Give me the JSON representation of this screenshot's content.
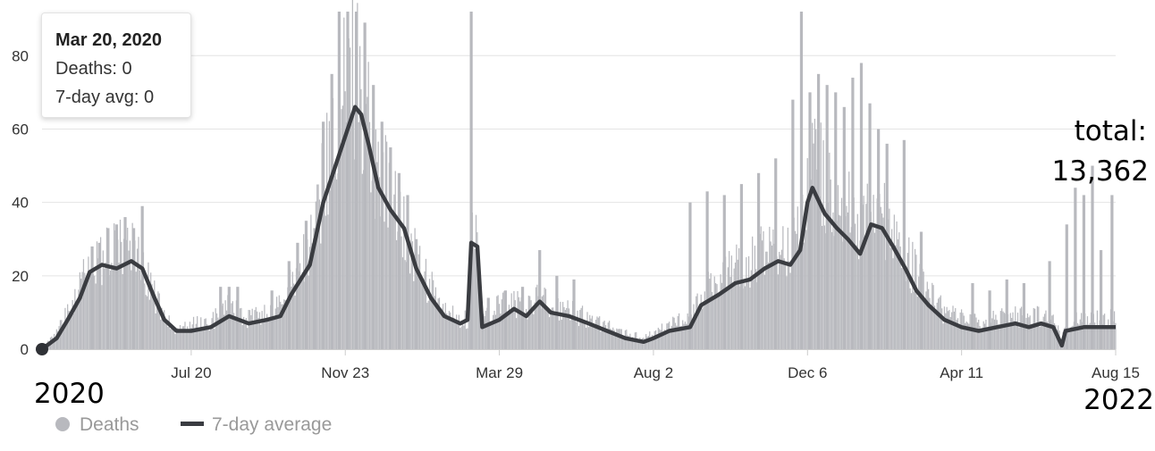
{
  "tooltip": {
    "title": "Mar 20, 2020",
    "deaths_label": "Deaths: 0",
    "avg_label": "7-day avg: 0"
  },
  "annotations": {
    "total_label": "total:",
    "total_value": "13,362",
    "start_year": "2020",
    "end_year": "2022"
  },
  "legend": {
    "deaths": "Deaths",
    "avg": "7-day average"
  },
  "colors": {
    "bars": "#b8b9be",
    "line": "#3a3c41",
    "grid": "#e4e4e4",
    "marker": "#2f3136"
  },
  "chart_data": {
    "type": "bar",
    "title": "",
    "xlabel": "",
    "ylabel": "",
    "x_range": [
      "2020-03-20",
      "2022-08-15"
    ],
    "ylim": [
      0,
      92
    ],
    "y_ticks": [
      0,
      20,
      40,
      60,
      80
    ],
    "x_ticks": [
      {
        "date": "2020-07-20",
        "label": "Jul 20"
      },
      {
        "date": "2020-11-23",
        "label": "Nov 23"
      },
      {
        "date": "2021-03-29",
        "label": "Mar 29"
      },
      {
        "date": "2021-08-02",
        "label": "Aug 2"
      },
      {
        "date": "2021-12-06",
        "label": "Dec 6"
      },
      {
        "date": "2022-04-11",
        "label": "Apr 11"
      },
      {
        "date": "2022-08-15",
        "label": "Aug 15"
      }
    ],
    "grid": true,
    "legend_position": "bottom-left",
    "series": [
      {
        "name": "7-day average",
        "type": "line",
        "points": [
          [
            "2020-03-20",
            0
          ],
          [
            "2020-04-01",
            3
          ],
          [
            "2020-04-10",
            8
          ],
          [
            "2020-04-20",
            14
          ],
          [
            "2020-04-28",
            21
          ],
          [
            "2020-05-08",
            23
          ],
          [
            "2020-05-20",
            22
          ],
          [
            "2020-06-01",
            24
          ],
          [
            "2020-06-10",
            22
          ],
          [
            "2020-06-20",
            14
          ],
          [
            "2020-06-28",
            8
          ],
          [
            "2020-07-08",
            5
          ],
          [
            "2020-07-20",
            5
          ],
          [
            "2020-08-05",
            6
          ],
          [
            "2020-08-20",
            9
          ],
          [
            "2020-09-05",
            7
          ],
          [
            "2020-09-20",
            8
          ],
          [
            "2020-10-01",
            9
          ],
          [
            "2020-10-10",
            15
          ],
          [
            "2020-10-25",
            23
          ],
          [
            "2020-11-05",
            40
          ],
          [
            "2020-11-15",
            50
          ],
          [
            "2020-11-23",
            58
          ],
          [
            "2020-12-01",
            66
          ],
          [
            "2020-12-06",
            64
          ],
          [
            "2020-12-12",
            56
          ],
          [
            "2020-12-20",
            44
          ],
          [
            "2020-12-30",
            38
          ],
          [
            "2021-01-10",
            33
          ],
          [
            "2021-01-20",
            22
          ],
          [
            "2021-02-01",
            14
          ],
          [
            "2021-02-12",
            9
          ],
          [
            "2021-02-25",
            7
          ],
          [
            "2021-03-03",
            8
          ],
          [
            "2021-03-06",
            29
          ],
          [
            "2021-03-11",
            28
          ],
          [
            "2021-03-15",
            6
          ],
          [
            "2021-03-29",
            8
          ],
          [
            "2021-04-10",
            11
          ],
          [
            "2021-04-20",
            9
          ],
          [
            "2021-05-01",
            13
          ],
          [
            "2021-05-10",
            10
          ],
          [
            "2021-05-25",
            9
          ],
          [
            "2021-06-10",
            7
          ],
          [
            "2021-06-25",
            5
          ],
          [
            "2021-07-10",
            3
          ],
          [
            "2021-07-25",
            2
          ],
          [
            "2021-08-02",
            3
          ],
          [
            "2021-08-15",
            5
          ],
          [
            "2021-09-01",
            6
          ],
          [
            "2021-09-10",
            12
          ],
          [
            "2021-09-25",
            15
          ],
          [
            "2021-10-08",
            18
          ],
          [
            "2021-10-20",
            19
          ],
          [
            "2021-11-01",
            22
          ],
          [
            "2021-11-12",
            24
          ],
          [
            "2021-11-22",
            23
          ],
          [
            "2021-11-30",
            27
          ],
          [
            "2021-12-06",
            40
          ],
          [
            "2021-12-10",
            44
          ],
          [
            "2021-12-20",
            37
          ],
          [
            "2021-12-30",
            33
          ],
          [
            "2022-01-08",
            30
          ],
          [
            "2022-01-18",
            26
          ],
          [
            "2022-01-27",
            34
          ],
          [
            "2022-02-05",
            33
          ],
          [
            "2022-02-14",
            28
          ],
          [
            "2022-02-24",
            22
          ],
          [
            "2022-03-05",
            16
          ],
          [
            "2022-03-15",
            12
          ],
          [
            "2022-03-28",
            8
          ],
          [
            "2022-04-11",
            6
          ],
          [
            "2022-04-25",
            5
          ],
          [
            "2022-05-10",
            6
          ],
          [
            "2022-05-25",
            7
          ],
          [
            "2022-06-05",
            6
          ],
          [
            "2022-06-15",
            7
          ],
          [
            "2022-06-25",
            6
          ],
          [
            "2022-07-02",
            1
          ],
          [
            "2022-07-05",
            5
          ],
          [
            "2022-07-20",
            6
          ],
          [
            "2022-08-01",
            6
          ],
          [
            "2022-08-15",
            6
          ]
        ]
      },
      {
        "name": "Deaths",
        "type": "bar",
        "envelope": [
          [
            "2020-03-20",
            0
          ],
          [
            "2020-04-01",
            5
          ],
          [
            "2020-04-10",
            12
          ],
          [
            "2020-04-20",
            22
          ],
          [
            "2020-04-28",
            28
          ],
          [
            "2020-05-08",
            30
          ],
          [
            "2020-05-20",
            32
          ],
          [
            "2020-06-01",
            35
          ],
          [
            "2020-06-10",
            30
          ],
          [
            "2020-06-20",
            18
          ],
          [
            "2020-06-28",
            10
          ],
          [
            "2020-07-08",
            7
          ],
          [
            "2020-07-20",
            8
          ],
          [
            "2020-08-05",
            9
          ],
          [
            "2020-08-20",
            14
          ],
          [
            "2020-09-05",
            10
          ],
          [
            "2020-09-20",
            12
          ],
          [
            "2020-10-01",
            14
          ],
          [
            "2020-10-10",
            22
          ],
          [
            "2020-10-25",
            32
          ],
          [
            "2020-11-05",
            55
          ],
          [
            "2020-11-15",
            70
          ],
          [
            "2020-11-23",
            85
          ],
          [
            "2020-12-01",
            92
          ],
          [
            "2020-12-06",
            88
          ],
          [
            "2020-12-12",
            75
          ],
          [
            "2020-12-20",
            58
          ],
          [
            "2020-12-30",
            50
          ],
          [
            "2021-01-10",
            44
          ],
          [
            "2021-01-20",
            30
          ],
          [
            "2021-02-01",
            20
          ],
          [
            "2021-02-12",
            12
          ],
          [
            "2021-02-25",
            10
          ],
          [
            "2021-03-03",
            10
          ],
          [
            "2021-03-06",
            40
          ],
          [
            "2021-03-11",
            35
          ],
          [
            "2021-03-15",
            9
          ],
          [
            "2021-03-29",
            14
          ],
          [
            "2021-04-10",
            16
          ],
          [
            "2021-04-20",
            13
          ],
          [
            "2021-05-01",
            18
          ],
          [
            "2021-05-10",
            14
          ],
          [
            "2021-05-25",
            13
          ],
          [
            "2021-06-10",
            10
          ],
          [
            "2021-06-25",
            8
          ],
          [
            "2021-07-10",
            5
          ],
          [
            "2021-07-25",
            4
          ],
          [
            "2021-08-02",
            5
          ],
          [
            "2021-08-15",
            8
          ],
          [
            "2021-09-01",
            10
          ],
          [
            "2021-09-10",
            18
          ],
          [
            "2021-09-25",
            22
          ],
          [
            "2021-10-08",
            26
          ],
          [
            "2021-10-20",
            28
          ],
          [
            "2021-11-01",
            32
          ],
          [
            "2021-11-12",
            34
          ],
          [
            "2021-11-22",
            33
          ],
          [
            "2021-11-30",
            40
          ],
          [
            "2021-12-06",
            58
          ],
          [
            "2021-12-10",
            62
          ],
          [
            "2021-12-20",
            55
          ],
          [
            "2021-12-30",
            50
          ],
          [
            "2022-01-08",
            45
          ],
          [
            "2022-01-18",
            40
          ],
          [
            "2022-01-27",
            48
          ],
          [
            "2022-02-05",
            46
          ],
          [
            "2022-02-14",
            40
          ],
          [
            "2022-02-24",
            32
          ],
          [
            "2022-03-05",
            24
          ],
          [
            "2022-03-15",
            18
          ],
          [
            "2022-03-28",
            12
          ],
          [
            "2022-04-11",
            10
          ],
          [
            "2022-04-25",
            9
          ],
          [
            "2022-05-10",
            10
          ],
          [
            "2022-05-25",
            11
          ],
          [
            "2022-06-05",
            10
          ],
          [
            "2022-06-15",
            11
          ],
          [
            "2022-06-25",
            10
          ],
          [
            "2022-07-02",
            3
          ],
          [
            "2022-07-05",
            8
          ],
          [
            "2022-07-20",
            10
          ],
          [
            "2022-08-01",
            10
          ],
          [
            "2022-08-15",
            10
          ]
        ],
        "spikes": [
          [
            "2020-04-30",
            28
          ],
          [
            "2020-05-06",
            29
          ],
          [
            "2020-05-13",
            33
          ],
          [
            "2020-05-20",
            34
          ],
          [
            "2020-05-27",
            36
          ],
          [
            "2020-06-03",
            33
          ],
          [
            "2020-06-10",
            39
          ],
          [
            "2020-08-13",
            17
          ],
          [
            "2020-08-20",
            17
          ],
          [
            "2020-08-27",
            17
          ],
          [
            "2020-09-24",
            16
          ],
          [
            "2020-10-08",
            24
          ],
          [
            "2020-10-15",
            29
          ],
          [
            "2020-10-22",
            35
          ],
          [
            "2020-10-29",
            33
          ],
          [
            "2020-11-05",
            62
          ],
          [
            "2020-11-12",
            75
          ],
          [
            "2020-11-18",
            92
          ],
          [
            "2020-11-25",
            92
          ],
          [
            "2020-12-02",
            92
          ],
          [
            "2020-12-09",
            89
          ],
          [
            "2020-12-16",
            72
          ],
          [
            "2020-12-23",
            62
          ],
          [
            "2020-12-30",
            55
          ],
          [
            "2021-01-06",
            48
          ],
          [
            "2021-01-13",
            42
          ],
          [
            "2021-01-20",
            30
          ],
          [
            "2021-03-06",
            92
          ],
          [
            "2021-03-20",
            14
          ],
          [
            "2021-04-03",
            16
          ],
          [
            "2021-04-17",
            17
          ],
          [
            "2021-05-01",
            27
          ],
          [
            "2021-05-15",
            20
          ],
          [
            "2021-05-29",
            19
          ],
          [
            "2021-09-01",
            40
          ],
          [
            "2021-09-15",
            43
          ],
          [
            "2021-09-29",
            42
          ],
          [
            "2021-10-13",
            45
          ],
          [
            "2021-10-27",
            48
          ],
          [
            "2021-11-10",
            52
          ],
          [
            "2021-11-24",
            68
          ],
          [
            "2021-12-01",
            92
          ],
          [
            "2021-12-08",
            70
          ],
          [
            "2021-12-15",
            75
          ],
          [
            "2021-12-22",
            72
          ],
          [
            "2021-12-29",
            70
          ],
          [
            "2022-01-05",
            66
          ],
          [
            "2022-01-12",
            74
          ],
          [
            "2022-01-19",
            78
          ],
          [
            "2022-01-26",
            67
          ],
          [
            "2022-02-02",
            60
          ],
          [
            "2022-02-09",
            56
          ],
          [
            "2022-02-23",
            57
          ],
          [
            "2022-03-09",
            32
          ],
          [
            "2022-04-20",
            18
          ],
          [
            "2022-05-04",
            16
          ],
          [
            "2022-05-18",
            19
          ],
          [
            "2022-06-01",
            18
          ],
          [
            "2022-06-22",
            24
          ],
          [
            "2022-07-06",
            34
          ],
          [
            "2022-07-13",
            44
          ],
          [
            "2022-07-20",
            42
          ],
          [
            "2022-07-27",
            50
          ],
          [
            "2022-08-03",
            27
          ],
          [
            "2022-08-12",
            42
          ]
        ]
      }
    ]
  }
}
